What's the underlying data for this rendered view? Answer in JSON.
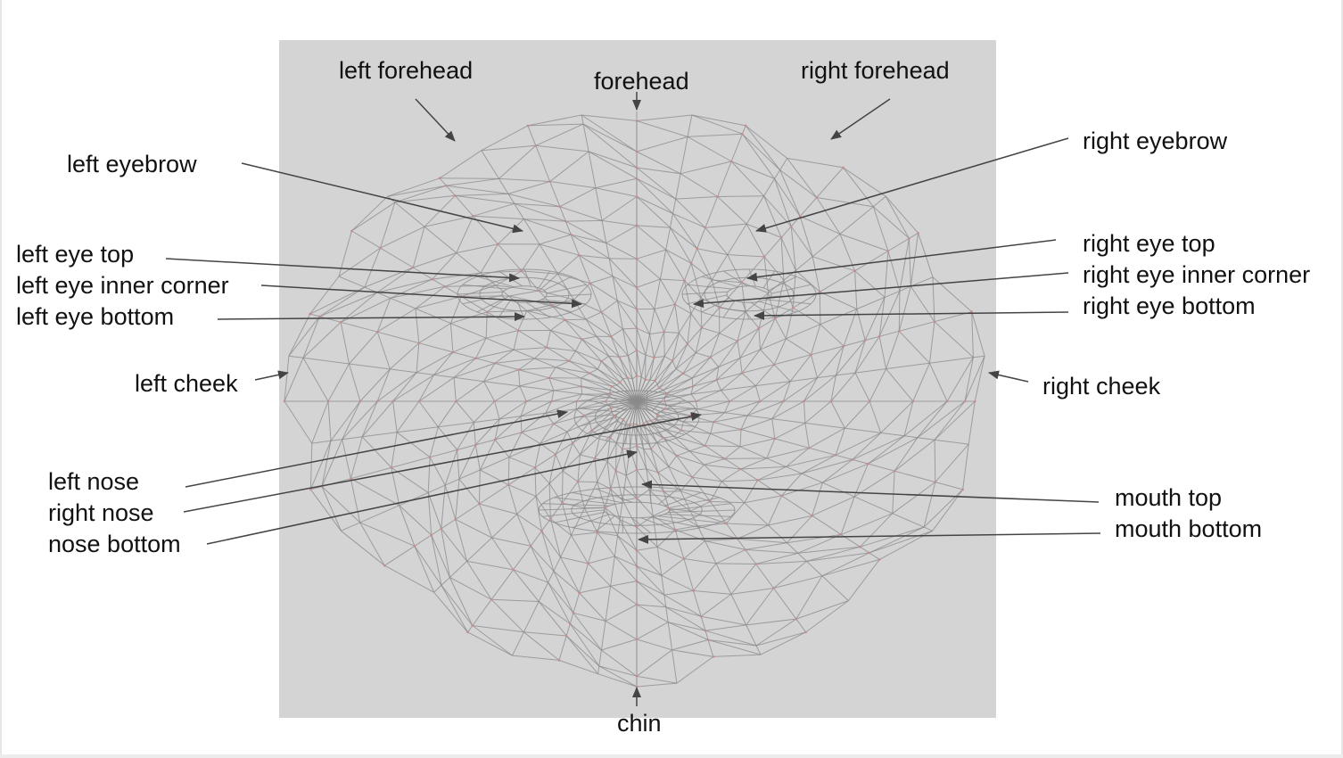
{
  "diagram": {
    "colors": {
      "background": "#ffffff",
      "face_panel": "#d4d4d4",
      "mesh_line": "#8a8a8a",
      "landmark_point": "#c98a8a",
      "arrow": "#444444",
      "label_text": "#111111"
    },
    "labels": {
      "left_forehead": "left forehead",
      "forehead": "forehead",
      "right_forehead": "right forehead",
      "left_eyebrow": "left eyebrow",
      "right_eyebrow": "right eyebrow",
      "left_eye_top": "left eye top",
      "left_eye_inner_corner": "left eye inner corner",
      "left_eye_bottom": "left eye bottom",
      "right_eye_top": "right eye top",
      "right_eye_inner_corner": "right eye inner corner",
      "right_eye_bottom": "right eye bottom",
      "left_cheek": "left cheek",
      "right_cheek": "right cheek",
      "left_nose": "left nose",
      "right_nose": "right nose",
      "nose_bottom": "nose bottom",
      "mouth_top": "mouth top",
      "mouth_bottom": "mouth bottom",
      "chin": "chin"
    }
  }
}
